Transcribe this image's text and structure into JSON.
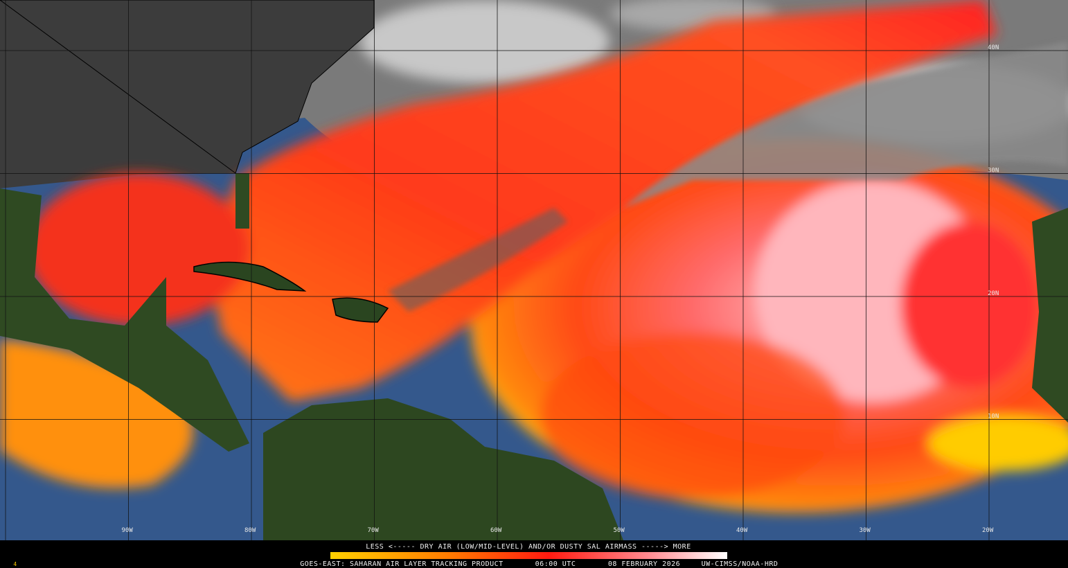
{
  "map": {
    "latitude_labels": [
      "40N",
      "30N",
      "20N",
      "10N"
    ],
    "longitude_labels": [
      "90W",
      "80W",
      "70W",
      "60W",
      "50W",
      "40W",
      "30W",
      "20W"
    ]
  },
  "legend": {
    "caption": "LESS <----- DRY AIR (LOW/MID-LEVEL) AND/OR DUSTY SAL AIRMASS -----> MORE"
  },
  "footer": {
    "frame": "4",
    "product": "GOES-EAST: SAHARAN AIR LAYER TRACKING PRODUCT",
    "time": "06:00 UTC",
    "date": "08 FEBRUARY 2026",
    "credit": "UW-CIMSS/NOAA-HRD"
  }
}
